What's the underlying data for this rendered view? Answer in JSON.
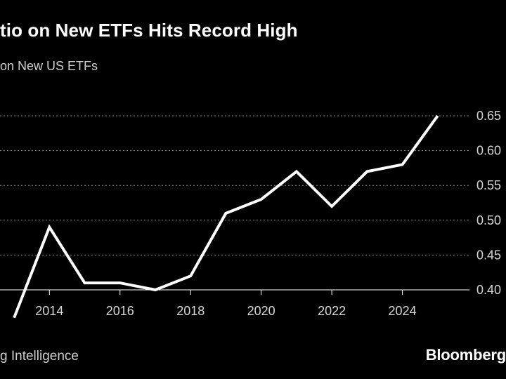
{
  "header": {
    "title": "tio on New ETFs Hits Record High",
    "subtitle": "on New US ETFs"
  },
  "footer": {
    "source": "g Intelligence",
    "brand": "Bloomberg"
  },
  "colors": {
    "background": "#000000",
    "line": "#ffffff",
    "grid": "#8a8a8a",
    "text": "#ffffff",
    "muted_text": "#cfcfcf"
  },
  "chart_data": {
    "type": "line",
    "title": "tio on New ETFs Hits Record High",
    "subtitle": "on New US ETFs",
    "xlabel": "",
    "ylabel": "",
    "x": [
      2013,
      2014,
      2015,
      2016,
      2017,
      2018,
      2019,
      2020,
      2021,
      2022,
      2023,
      2024,
      2025
    ],
    "series": [
      {
        "values": [
          0.36,
          0.49,
          0.41,
          0.41,
          0.4,
          0.42,
          0.51,
          0.53,
          0.57,
          0.52,
          0.57,
          0.58,
          0.65
        ]
      }
    ],
    "xlim": [
      2012.6,
      2025.9
    ],
    "ylim": [
      0.4,
      0.65
    ],
    "x_ticks": [
      2014,
      2016,
      2018,
      2020,
      2022,
      2024
    ],
    "x_tick_labels": [
      "2014",
      "2016",
      "2018",
      "2020",
      "2022",
      "2024"
    ],
    "y_ticks": [
      0.4,
      0.45,
      0.5,
      0.55,
      0.6,
      0.65
    ],
    "y_tick_labels": [
      "0.40",
      "0.45",
      "0.50",
      "0.55",
      "0.60",
      "0.65"
    ],
    "grid": "horizontal-dotted",
    "y_axis_side": "right",
    "legend": "none"
  }
}
